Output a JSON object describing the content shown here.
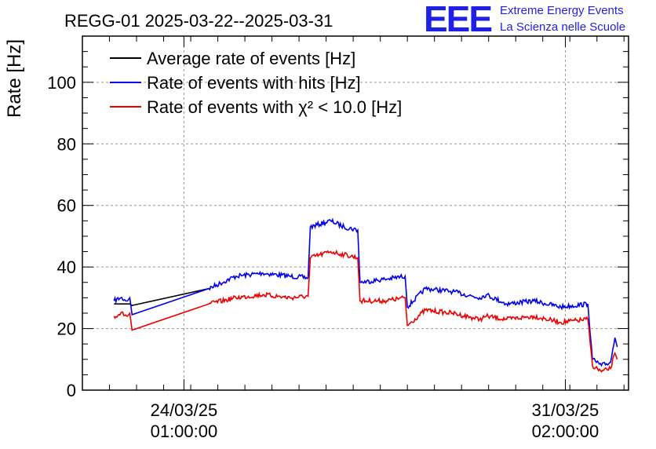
{
  "header": {
    "title": "REGG-01 2025-03-22--2025-03-31",
    "logo_mark": "EEE",
    "logo_line1": "Extreme Energy Events",
    "logo_line2": "La Scienza nelle Scuole"
  },
  "chart_data": {
    "type": "line",
    "title": "REGG-01 2025-03-22--2025-03-31",
    "ylabel": "Rate [Hz]",
    "xlabel": "",
    "ylim": [
      0,
      115
    ],
    "yticks": [
      0,
      20,
      40,
      60,
      80,
      100
    ],
    "yticks_labels": [
      "0",
      "20",
      "40",
      "60",
      "80",
      "100"
    ],
    "xlim": [
      "2025-03-22T04:00",
      "2025-04-01T06:00"
    ],
    "xticks": [
      {
        "x": "2025-03-24T01:00",
        "label1": "24/03/25",
        "label2": "01:00:00"
      },
      {
        "x": "2025-03-31T02:00",
        "label1": "31/03/25",
        "label2": "02:00:00"
      }
    ],
    "grid": true,
    "legend_position": "top-left",
    "series": [
      {
        "name": "Average rate of events [Hz]",
        "color": "#000000",
        "x": [
          "2025-03-22T18:00",
          "2025-03-23T01:00",
          "2025-03-23T02:00",
          "2025-03-24T12:00"
        ],
        "y": [
          28,
          28,
          27.5,
          33
        ]
      },
      {
        "name": "Rate of events with hits [Hz]",
        "color": "#0000ee",
        "x": [
          "2025-03-22T18:00",
          "2025-03-22T21:00",
          "2025-03-23T00:00",
          "2025-03-23T01:00",
          "2025-03-23T02:00",
          "2025-03-24T12:00",
          "2025-03-25T00:00",
          "2025-03-25T12:00",
          "2025-03-26T00:00",
          "2025-03-26T08:00",
          "2025-03-26T09:00",
          "2025-03-26T18:00",
          "2025-03-27T00:00",
          "2025-03-27T06:00",
          "2025-03-27T07:00",
          "2025-03-27T18:00",
          "2025-03-28T03:00",
          "2025-03-28T04:00",
          "2025-03-28T12:00",
          "2025-03-29T00:00",
          "2025-03-29T12:00",
          "2025-03-29T15:00",
          "2025-03-30T00:00",
          "2025-03-30T12:00",
          "2025-03-31T00:00",
          "2025-03-31T12:00",
          "2025-03-31T14:00",
          "2025-03-31T18:00",
          "2025-03-31T22:00",
          "2025-04-01T00:00",
          "2025-04-01T01:00"
        ],
        "y": [
          29,
          30,
          29,
          30,
          24.5,
          33,
          37,
          38,
          37,
          36.5,
          53,
          55,
          53,
          52,
          35,
          36,
          37,
          27,
          33,
          32,
          30,
          31,
          28,
          29,
          27,
          28,
          10,
          8,
          9,
          17,
          14
        ]
      },
      {
        "name": "Rate of events with χ² < 10.0 [Hz]",
        "color": "#ee0000",
        "x": [
          "2025-03-22T18:00",
          "2025-03-22T21:00",
          "2025-03-23T00:00",
          "2025-03-23T01:00",
          "2025-03-23T02:00",
          "2025-03-24T12:00",
          "2025-03-25T00:00",
          "2025-03-25T12:00",
          "2025-03-26T00:00",
          "2025-03-26T08:00",
          "2025-03-26T09:00",
          "2025-03-26T18:00",
          "2025-03-27T00:00",
          "2025-03-27T06:00",
          "2025-03-27T07:00",
          "2025-03-27T18:00",
          "2025-03-28T03:00",
          "2025-03-28T04:00",
          "2025-03-28T12:00",
          "2025-03-29T00:00",
          "2025-03-29T12:00",
          "2025-03-29T15:00",
          "2025-03-30T00:00",
          "2025-03-30T12:00",
          "2025-03-31T00:00",
          "2025-03-31T12:00",
          "2025-03-31T14:00",
          "2025-03-31T18:00",
          "2025-03-31T22:00",
          "2025-04-01T00:00",
          "2025-04-01T01:00"
        ],
        "y": [
          24,
          25,
          24,
          25,
          19.5,
          28,
          30,
          31,
          30,
          30.5,
          43,
          45,
          44,
          43,
          29,
          29,
          30,
          21,
          26,
          25,
          23,
          24,
          23,
          24,
          22,
          23,
          8,
          6,
          7,
          12,
          10
        ]
      }
    ]
  }
}
